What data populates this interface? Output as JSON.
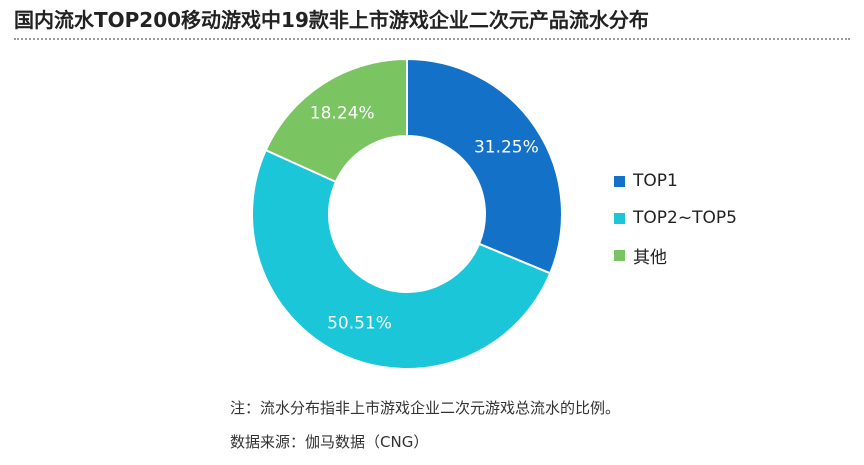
{
  "title": "国内流水TOP200移动游戏中19款非上市游戏企业二次元产品流水分布",
  "chart_data": {
    "type": "pie",
    "title": "国内流水TOP200移动游戏中19款非上市游戏企业二次元产品流水分布",
    "donut": true,
    "slices": [
      {
        "label": "TOP1",
        "value": 31.25,
        "display": "31.25%",
        "color": "#1372c8"
      },
      {
        "label": "TOP2~TOP5",
        "value": 50.51,
        "display": "50.51%",
        "color": "#1cc6d9"
      },
      {
        "label": "其他",
        "value": 18.24,
        "display": "18.24%",
        "color": "#7ac462"
      }
    ],
    "legend_position": "right"
  },
  "legend": [
    {
      "label": "TOP1",
      "color": "#1372c8"
    },
    {
      "label": "TOP2~TOP5",
      "color": "#1cc6d9"
    },
    {
      "label": "其他",
      "color": "#7ac462"
    }
  ],
  "note": "注：流水分布指非上市游戏企业二次元游戏总流水的比例。",
  "source": "数据来源：伽马数据（CNG）"
}
